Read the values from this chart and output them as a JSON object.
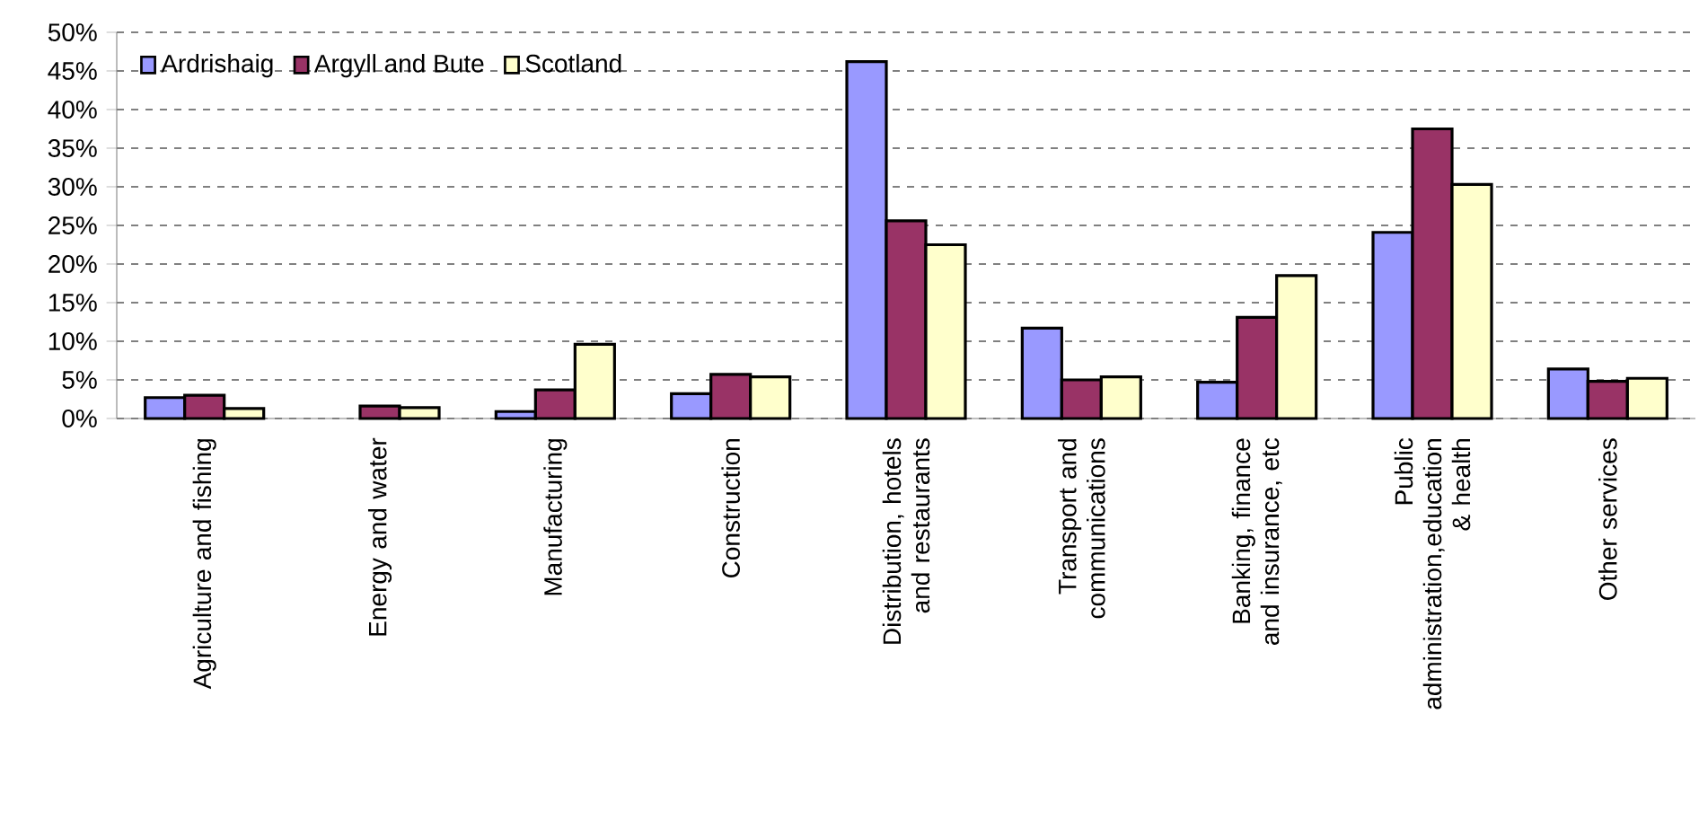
{
  "chart_data": {
    "type": "bar",
    "categories": [
      "Agriculture and fishing",
      "Energy and water",
      "Manufacturing",
      "Construction",
      "Distribution, hotels and restaurants",
      "Transport and communications",
      "Banking, finance and insurance, etc",
      "Public administration,education & health",
      "Other services"
    ],
    "series": [
      {
        "name": "Ardrishaig",
        "color": "#9999ff",
        "values": [
          2.7,
          null,
          0.9,
          3.2,
          46.2,
          11.7,
          4.7,
          24.1,
          6.4
        ]
      },
      {
        "name": "Argyll and Bute",
        "color": "#993366",
        "values": [
          3.0,
          1.6,
          3.7,
          5.7,
          25.6,
          5.0,
          13.1,
          37.5,
          4.8
        ]
      },
      {
        "name": "Scotland",
        "color": "#ffffcc",
        "values": [
          1.3,
          1.4,
          9.6,
          5.4,
          22.5,
          5.4,
          18.5,
          30.3,
          5.2
        ]
      }
    ],
    "ylim": [
      0,
      50
    ],
    "yticks": [
      {
        "value": 0,
        "label": "0%"
      },
      {
        "value": 5,
        "label": "5%"
      },
      {
        "value": 10,
        "label": "10%"
      },
      {
        "value": 15,
        "label": "15%"
      },
      {
        "value": 20,
        "label": "20%"
      },
      {
        "value": 25,
        "label": "25%"
      },
      {
        "value": 30,
        "label": "30%"
      },
      {
        "value": 35,
        "label": "35%"
      },
      {
        "value": 40,
        "label": "40%"
      },
      {
        "value": 45,
        "label": "45%"
      },
      {
        "value": 50,
        "label": "50%"
      }
    ],
    "grid": "y",
    "legend": "top left"
  }
}
